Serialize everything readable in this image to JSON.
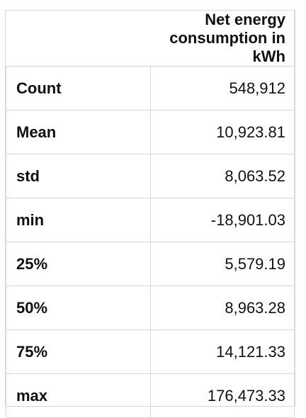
{
  "table": {
    "header": "Net energy consumption in kWh",
    "rows": [
      {
        "label": "Count",
        "value": "548,912"
      },
      {
        "label": "Mean",
        "value": "10,923.81"
      },
      {
        "label": "std",
        "value": "8,063.52"
      },
      {
        "label": "min",
        "value": "-18,901.03"
      },
      {
        "label": "25%",
        "value": "5,579.19"
      },
      {
        "label": "50%",
        "value": "8,963.28"
      },
      {
        "label": "75%",
        "value": "14,121.33"
      },
      {
        "label": "max",
        "value": "176,473.33"
      }
    ]
  },
  "colors": {
    "border": "#d6d6d6",
    "text": "#111111",
    "background": "#ffffff"
  }
}
